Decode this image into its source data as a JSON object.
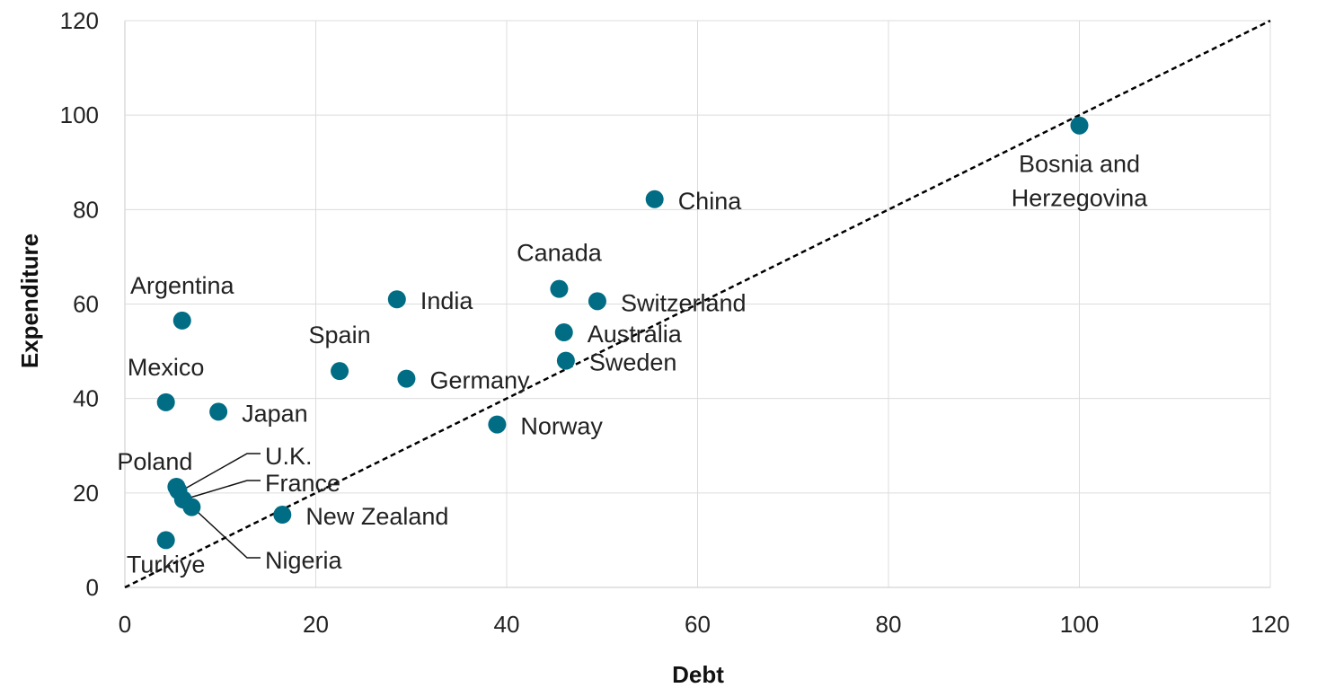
{
  "chart_data": {
    "type": "scatter",
    "xlabel": "Debt",
    "ylabel": "Expenditure",
    "xlim": [
      0,
      120
    ],
    "ylim": [
      0,
      120
    ],
    "x_ticks": [
      0,
      20,
      40,
      60,
      80,
      100,
      120
    ],
    "y_ticks": [
      0,
      20,
      40,
      60,
      80,
      100,
      120
    ],
    "grid": true,
    "marker_color": "#006d85",
    "reference_line": {
      "style": "dashed",
      "color": "#000000",
      "from": [
        0,
        0
      ],
      "to": [
        120,
        120
      ]
    },
    "points": [
      {
        "label": "Bosnia and Herzegovina",
        "x": 100.0,
        "y": 97.8
      },
      {
        "label": "China",
        "x": 55.5,
        "y": 82.2
      },
      {
        "label": "Canada",
        "x": 45.5,
        "y": 63.2
      },
      {
        "label": "Switzerland",
        "x": 49.5,
        "y": 60.6
      },
      {
        "label": "India",
        "x": 28.5,
        "y": 61.0
      },
      {
        "label": "Argentina",
        "x": 6.0,
        "y": 56.5
      },
      {
        "label": "Australia",
        "x": 46.0,
        "y": 54.0
      },
      {
        "label": "Sweden",
        "x": 46.2,
        "y": 48.0
      },
      {
        "label": "Spain",
        "x": 22.5,
        "y": 45.8
      },
      {
        "label": "Germany",
        "x": 29.5,
        "y": 44.2
      },
      {
        "label": "Mexico",
        "x": 4.3,
        "y": 39.2
      },
      {
        "label": "Japan",
        "x": 9.8,
        "y": 37.2
      },
      {
        "label": "Norway",
        "x": 39.0,
        "y": 34.5
      },
      {
        "label": "Poland",
        "x": 5.4,
        "y": 21.3
      },
      {
        "label": "U.K.",
        "x": 5.6,
        "y": 20.5
      },
      {
        "label": "France",
        "x": 6.1,
        "y": 18.6
      },
      {
        "label": "Nigeria",
        "x": 7.0,
        "y": 17.0
      },
      {
        "label": "New Zealand",
        "x": 16.5,
        "y": 15.4
      },
      {
        "label": "Turkiye",
        "x": 4.3,
        "y": 10.0
      }
    ]
  }
}
